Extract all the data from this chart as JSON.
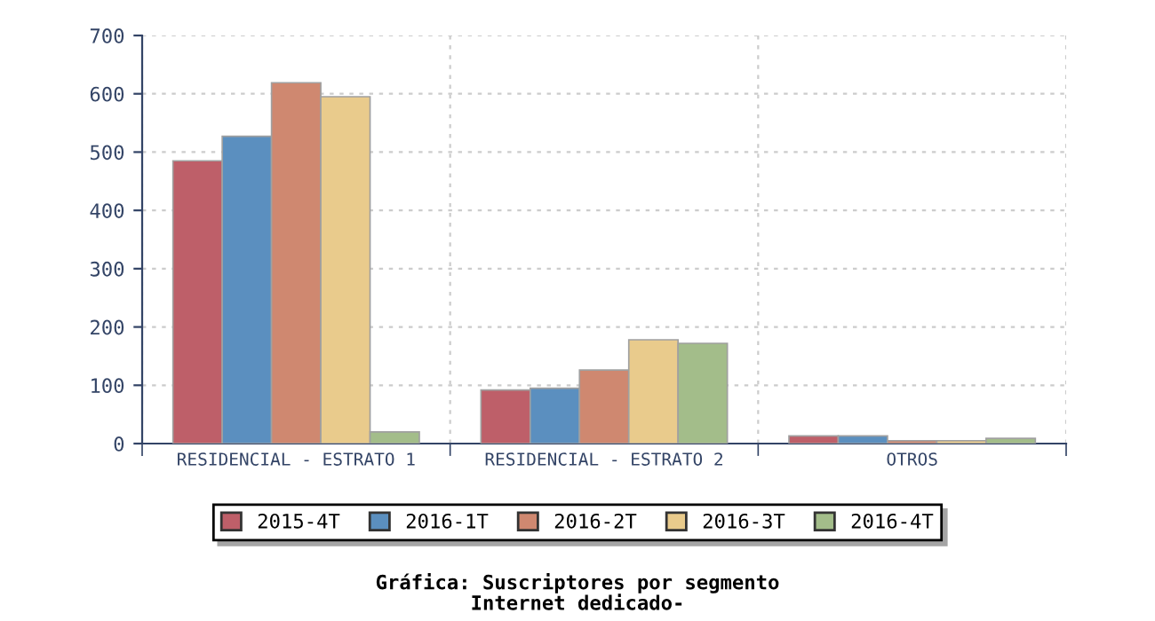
{
  "chart_data": {
    "type": "bar",
    "title": "Gráfica: Suscriptores por segmento\nInternet dedicado-",
    "categories": [
      "RESIDENCIAL - ESTRATO 1",
      "RESIDENCIAL - ESTRATO 2",
      "OTROS"
    ],
    "series": [
      {
        "name": "2015-4T",
        "color": "#be5f69",
        "values": [
          485,
          92,
          13
        ]
      },
      {
        "name": "2016-1T",
        "color": "#5b8fbf",
        "values": [
          527,
          95,
          13
        ]
      },
      {
        "name": "2016-2T",
        "color": "#cf8870",
        "values": [
          619,
          126,
          5
        ]
      },
      {
        "name": "2016-3T",
        "color": "#e9cb8c",
        "values": [
          595,
          178,
          5
        ]
      },
      {
        "name": "2016-4T",
        "color": "#a3bd8a",
        "values": [
          20,
          172,
          9
        ]
      }
    ],
    "ylim": [
      0,
      700
    ],
    "yticks": [
      0,
      100,
      200,
      300,
      400,
      500,
      600,
      700
    ],
    "grid": true,
    "legend": "bottom"
  }
}
